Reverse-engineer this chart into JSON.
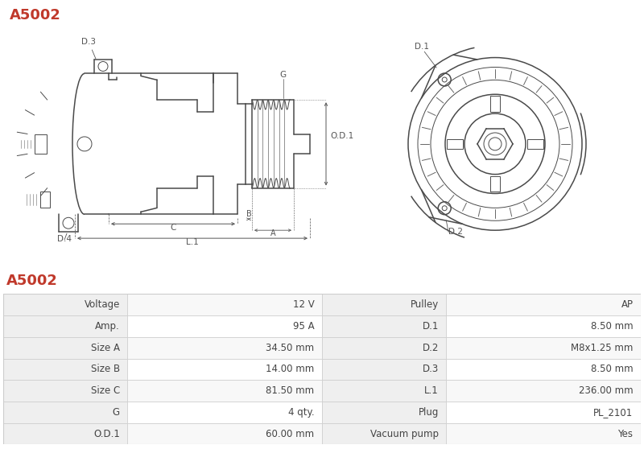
{
  "title": "A5002",
  "title_color": "#c0392b",
  "title_fontsize": 13,
  "bg_color": "#ffffff",
  "table": {
    "rows": [
      [
        "Voltage",
        "12 V",
        "Pulley",
        "AP"
      ],
      [
        "Amp.",
        "95 A",
        "D.1",
        "8.50 mm"
      ],
      [
        "Size A",
        "34.50 mm",
        "D.2",
        "M8x1.25 mm"
      ],
      [
        "Size B",
        "14.00 mm",
        "D.3",
        "8.50 mm"
      ],
      [
        "Size C",
        "81.50 mm",
        "L.1",
        "236.00 mm"
      ],
      [
        "G",
        "4 qty.",
        "Plug",
        "PL_2101"
      ],
      [
        "O.D.1",
        "60.00 mm",
        "Vacuum pump",
        "Yes"
      ]
    ],
    "header_bg": "#efefef",
    "row_bg_odd": "#f8f8f8",
    "row_bg_even": "#ffffff",
    "text_color": "#444444",
    "border_color": "#cccccc",
    "font_size": 8.5
  },
  "line_color": "#4a4a4a",
  "dim_color": "#555555"
}
